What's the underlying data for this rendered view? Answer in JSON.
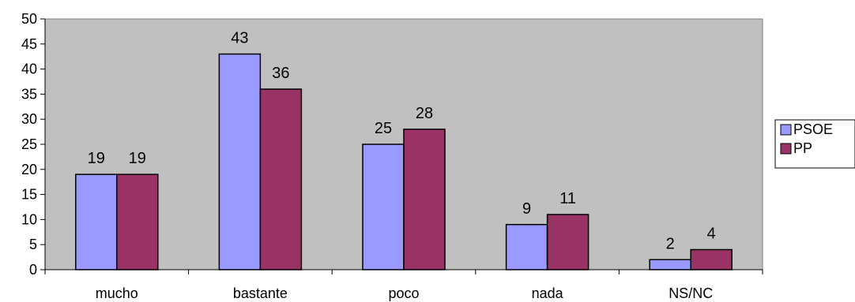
{
  "chart_data": {
    "type": "bar",
    "categories": [
      "mucho",
      "bastante",
      "poco",
      "nada",
      "NS/NC"
    ],
    "series": [
      {
        "name": "PSOE",
        "values": [
          19,
          43,
          25,
          9,
          2
        ],
        "color": "#9999FF"
      },
      {
        "name": "PP",
        "values": [
          19,
          36,
          28,
          11,
          4
        ],
        "color": "#993366"
      }
    ],
    "ylim": [
      0,
      50
    ],
    "yticks": [
      0,
      5,
      10,
      15,
      20,
      25,
      30,
      35,
      40,
      45,
      50
    ],
    "title": "",
    "xlabel": "",
    "ylabel": "",
    "plot_background": "#C0C0C0",
    "grid": false,
    "legend_position": "right"
  }
}
